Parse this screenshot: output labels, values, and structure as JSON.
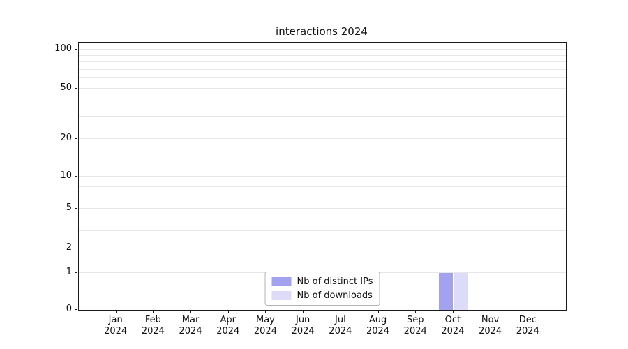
{
  "chart_data": {
    "type": "bar",
    "title": "interactions 2024",
    "categories": [
      "Jan",
      "Feb",
      "Mar",
      "Apr",
      "May",
      "Jun",
      "Jul",
      "Aug",
      "Sep",
      "Oct",
      "Nov",
      "Dec"
    ],
    "year": "2024",
    "series": [
      {
        "name": "Nb of distinct IPs",
        "color": "#a2a2ef",
        "values": [
          0,
          0,
          0,
          0,
          0,
          0,
          0,
          0,
          0,
          1,
          0,
          0
        ]
      },
      {
        "name": "Nb of downloads",
        "color": "#dcdcf8",
        "values": [
          0,
          0,
          0,
          0,
          0,
          0,
          0,
          0,
          0,
          1,
          0,
          0
        ]
      }
    ],
    "yticks": [
      0,
      1,
      2,
      5,
      10,
      20,
      50,
      100
    ],
    "grid_values": [
      1,
      2,
      3,
      4,
      5,
      6,
      7,
      8,
      9,
      10,
      20,
      30,
      40,
      50,
      60,
      70,
      80,
      90,
      100
    ],
    "scale": "symlog",
    "ylim": [
      0,
      115
    ],
    "grid": true,
    "legend_position": "lower center"
  }
}
